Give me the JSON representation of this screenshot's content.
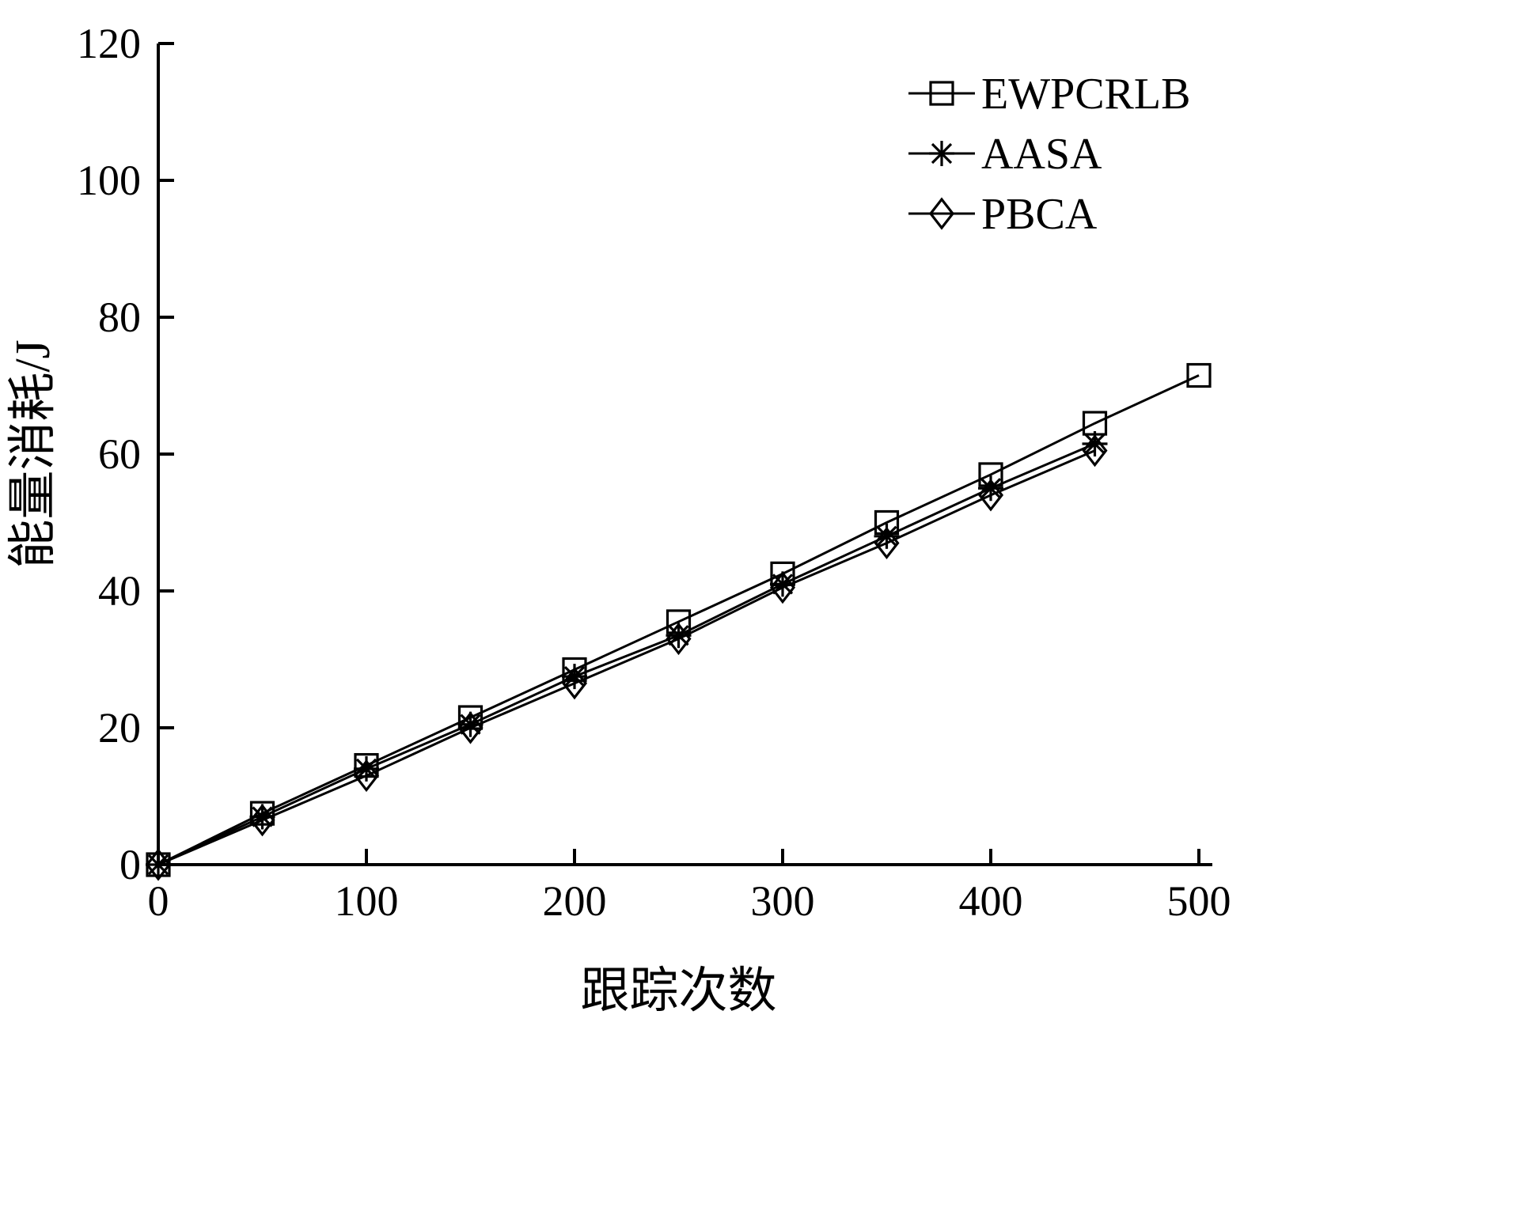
{
  "figure": {
    "background": "#ffffff",
    "foreground": "#000000"
  },
  "chart_data": {
    "type": "line",
    "title": "",
    "xlabel": "跟踪次数",
    "ylabel": "能量消耗/J",
    "xlim": [
      0,
      500
    ],
    "ylim": [
      0,
      120
    ],
    "xticks": [
      0,
      100,
      200,
      300,
      400,
      500
    ],
    "yticks": [
      0,
      20,
      40,
      60,
      80,
      100,
      120
    ],
    "grid": false,
    "legend_position": "top-right",
    "legend_entries": [
      "EWPCRLB",
      "AASA",
      "PBCA"
    ],
    "line_color": "#000000",
    "series": [
      {
        "name": "EWPCRLB",
        "marker": "square",
        "x": [
          0,
          50,
          100,
          150,
          200,
          250,
          300,
          350,
          400,
          450,
          500
        ],
        "y": [
          0,
          7.5,
          14.5,
          21.5,
          28.5,
          35.5,
          42.5,
          50,
          57,
          64.5,
          71.5
        ]
      },
      {
        "name": "AASA",
        "marker": "asterisk",
        "x": [
          0,
          50,
          100,
          150,
          200,
          250,
          300,
          350,
          400,
          450
        ],
        "y": [
          0,
          7,
          14,
          20.5,
          27.5,
          33.5,
          41,
          48,
          55,
          61.5
        ]
      },
      {
        "name": "PBCA",
        "marker": "diamond",
        "x": [
          0,
          50,
          100,
          150,
          200,
          250,
          300,
          350,
          400,
          450
        ],
        "y": [
          0,
          6.5,
          13,
          20,
          26.5,
          33,
          40.5,
          47,
          54,
          60.5
        ]
      }
    ]
  }
}
